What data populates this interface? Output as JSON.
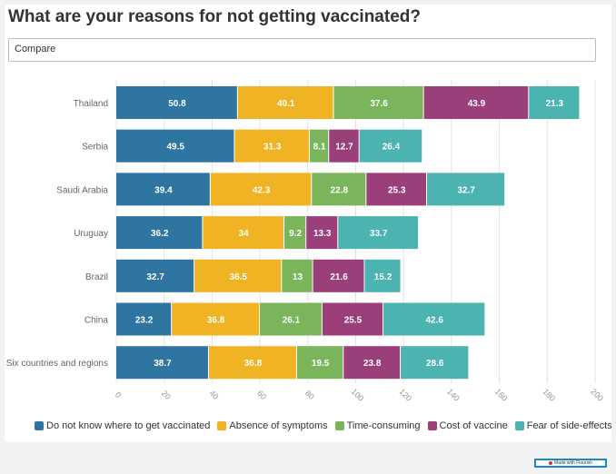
{
  "header": {
    "title": "What are your reasons for not getting vaccinated?",
    "compare_value": "Compare"
  },
  "footer": {
    "badge_label": "Made with Flourish"
  },
  "chart_data": {
    "type": "bar",
    "orientation": "horizontal",
    "stacked": true,
    "categories": [
      "Thailand",
      "Serbia",
      "Saudi Arabia",
      "Uruguay",
      "Brazil",
      "China",
      "Six countries and regions"
    ],
    "series": [
      {
        "name": "Do not know where to get vaccinated",
        "color": "#2e76a1",
        "values": [
          50.8,
          49.5,
          39.4,
          36.2,
          32.7,
          23.2,
          38.7
        ]
      },
      {
        "name": "Absence of symptoms",
        "color": "#f0b323",
        "values": [
          40.1,
          31.3,
          42.3,
          34,
          36.5,
          36.8,
          36.8
        ]
      },
      {
        "name": "Time-consuming",
        "color": "#7ab55c",
        "values": [
          37.6,
          8.1,
          22.8,
          9.2,
          13,
          26.1,
          19.5
        ]
      },
      {
        "name": "Cost of vaccine",
        "color": "#9b3f7a",
        "values": [
          43.9,
          12.7,
          25.3,
          13.3,
          21.6,
          25.5,
          23.8
        ]
      },
      {
        "name": "Fear of side-effects",
        "color": "#4bb3b0",
        "values": [
          21.3,
          26.4,
          32.7,
          33.7,
          15.2,
          42.6,
          28.6
        ]
      }
    ],
    "xlim": [
      0,
      200
    ],
    "xticks": [
      0,
      20,
      40,
      60,
      80,
      100,
      120,
      140,
      160,
      180,
      200
    ],
    "grid": true,
    "legend_position": "bottom"
  }
}
